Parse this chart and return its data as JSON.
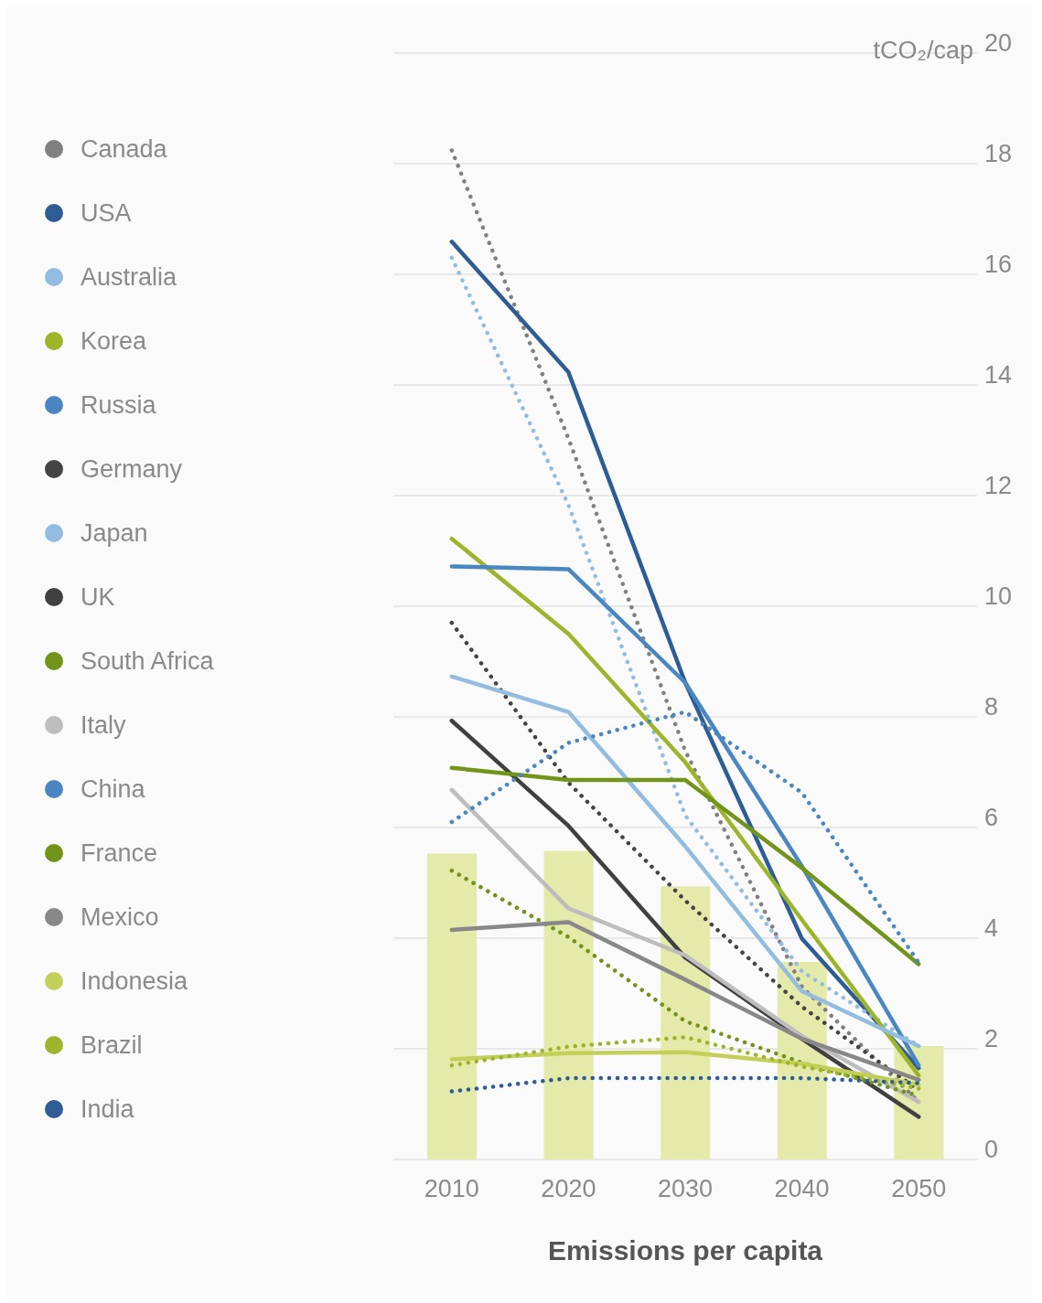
{
  "chart_data": {
    "type": "line",
    "xlabel": "Emissions per capita",
    "ylabel": "tCO₂/cap",
    "categories": [
      "2010",
      "2020",
      "2030",
      "2040",
      "2050"
    ],
    "ylim": [
      0,
      20
    ],
    "yticks": [
      0,
      2,
      4,
      6,
      8,
      10,
      12,
      14,
      16,
      18,
      20
    ],
    "grid": "y",
    "legend": "left",
    "marker": "none",
    "series": [
      {
        "type": "bar",
        "color": "#e4eaaa",
        "values": [
          5.53,
          5.58,
          4.94,
          3.57,
          2.05
        ]
      },
      {
        "name": "Canada",
        "color": "#808080",
        "line_style": "dotted",
        "values": [
          18.24,
          13.03,
          7.39,
          3.12,
          1.04
        ]
      },
      {
        "name": "USA",
        "color": "#2e5d96",
        "line_style": "solid",
        "values": [
          16.59,
          14.23,
          8.62,
          3.99,
          1.65
        ]
      },
      {
        "name": "Australia",
        "color": "#93bde0",
        "line_style": "dotted",
        "values": [
          16.3,
          11.83,
          6.22,
          3.4,
          2.05
        ]
      },
      {
        "name": "Korea",
        "color": "#9db52a",
        "line_style": "solid",
        "values": [
          11.22,
          9.5,
          7.18,
          4.33,
          1.52
        ]
      },
      {
        "name": "Russia",
        "color": "#4a87c2",
        "line_style": "solid",
        "values": [
          10.72,
          10.67,
          8.62,
          5.3,
          1.7
        ]
      },
      {
        "name": "Germany",
        "color": "#444444",
        "line_style": "dotted",
        "values": [
          9.7,
          6.81,
          4.68,
          2.76,
          1.25
        ]
      },
      {
        "name": "Japan",
        "color": "#93bde0",
        "line_style": "solid",
        "values": [
          8.73,
          8.09,
          5.66,
          3.04,
          2.05
        ]
      },
      {
        "name": "UK",
        "color": "#404040",
        "line_style": "solid",
        "values": [
          7.93,
          6.03,
          3.65,
          2.18,
          0.77
        ]
      },
      {
        "name": "South Africa",
        "color": "#72941a",
        "line_style": "solid",
        "values": [
          7.08,
          6.86,
          6.86,
          5.27,
          3.53
        ]
      },
      {
        "name": "Italy",
        "color": "#bdbdbd",
        "line_style": "solid",
        "values": [
          6.68,
          4.54,
          3.69,
          2.23,
          1.04
        ]
      },
      {
        "name": "China",
        "color": "#4a87c2",
        "line_style": "dotted",
        "values": [
          6.1,
          7.53,
          8.09,
          6.63,
          3.56
        ]
      },
      {
        "name": "France",
        "color": "#72941a",
        "line_style": "dotted",
        "values": [
          5.22,
          4.02,
          2.5,
          1.75,
          1.15
        ]
      },
      {
        "name": "Mexico",
        "color": "#888888",
        "line_style": "solid",
        "values": [
          4.15,
          4.29,
          3.25,
          2.18,
          1.44
        ]
      },
      {
        "name": "Indonesia",
        "color": "#c2d05a",
        "line_style": "solid",
        "values": [
          1.81,
          1.92,
          1.94,
          1.73,
          1.35
        ]
      },
      {
        "name": "Brazil",
        "color": "#9db52a",
        "line_style": "dotted",
        "values": [
          1.7,
          2.04,
          2.21,
          1.68,
          1.28
        ]
      },
      {
        "name": "India",
        "color": "#2e5d96",
        "line_style": "dotted",
        "values": [
          1.23,
          1.47,
          1.47,
          1.47,
          1.38
        ]
      }
    ]
  }
}
